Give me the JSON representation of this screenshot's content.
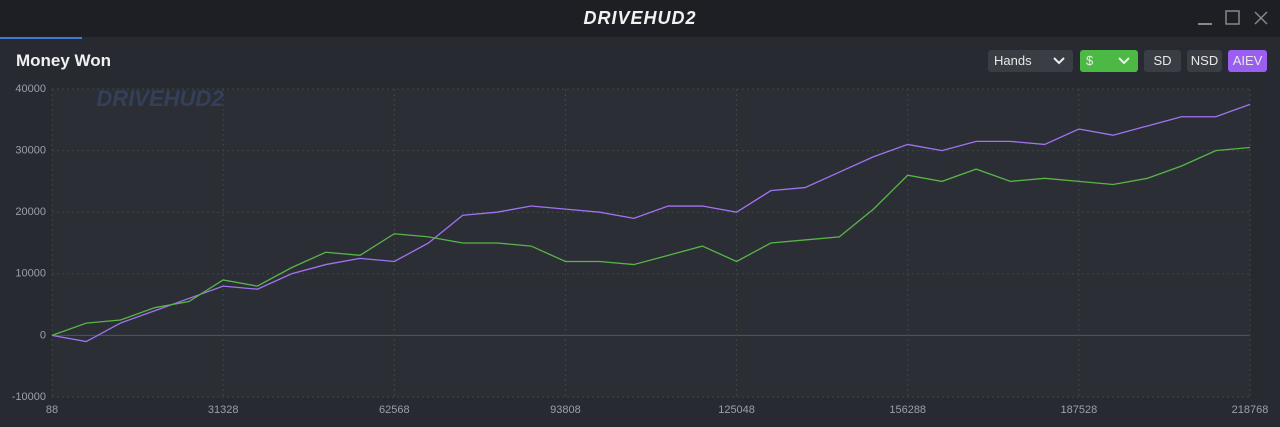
{
  "app_name": "DRIVEHUD2",
  "panel_title": "Money Won",
  "controls": {
    "x_axis_mode": "Hands",
    "currency": "$",
    "toggles": [
      "SD",
      "NSD",
      "AIEV"
    ]
  },
  "chart_data": {
    "type": "line",
    "x": [
      88,
      6336,
      12584,
      18832,
      25080,
      31328,
      37576,
      43824,
      50072,
      56320,
      62568,
      68816,
      75064,
      81312,
      87560,
      93808,
      100056,
      106304,
      112552,
      118800,
      125048,
      131296,
      137544,
      143792,
      150040,
      156288,
      162536,
      168784,
      175032,
      181280,
      187528,
      193776,
      200024,
      206272,
      212520,
      218768
    ],
    "series": [
      {
        "color": "#a173f2",
        "values": [
          0,
          -1000,
          2000,
          4000,
          6000,
          8000,
          7500,
          10000,
          11500,
          12500,
          12000,
          15000,
          19500,
          20000,
          21000,
          20500,
          20000,
          19000,
          21000,
          21000,
          20000,
          23500,
          24000,
          26500,
          29000,
          31000,
          30000,
          31500,
          31500,
          31000,
          33500,
          32500,
          34000,
          35500,
          35500,
          37500
        ]
      },
      {
        "color": "#58b548",
        "values": [
          0,
          2000,
          2500,
          4500,
          5500,
          9000,
          8000,
          11000,
          13500,
          13000,
          16500,
          16000,
          15000,
          15000,
          14500,
          12000,
          12000,
          11500,
          13000,
          14500,
          12000,
          15000,
          15500,
          16000,
          20500,
          26000,
          25000,
          27000,
          25000,
          25500,
          25000,
          24500,
          25500,
          27500,
          30000,
          30500
        ]
      }
    ],
    "xlim": [
      88,
      218768
    ],
    "xticks": [
      88,
      31328,
      62568,
      93808,
      125048,
      156288,
      187528,
      218768
    ],
    "ylim": [
      -10000,
      40000
    ],
    "yticks": [
      40000,
      30000,
      20000,
      10000,
      0,
      -10000
    ],
    "grid": true
  }
}
